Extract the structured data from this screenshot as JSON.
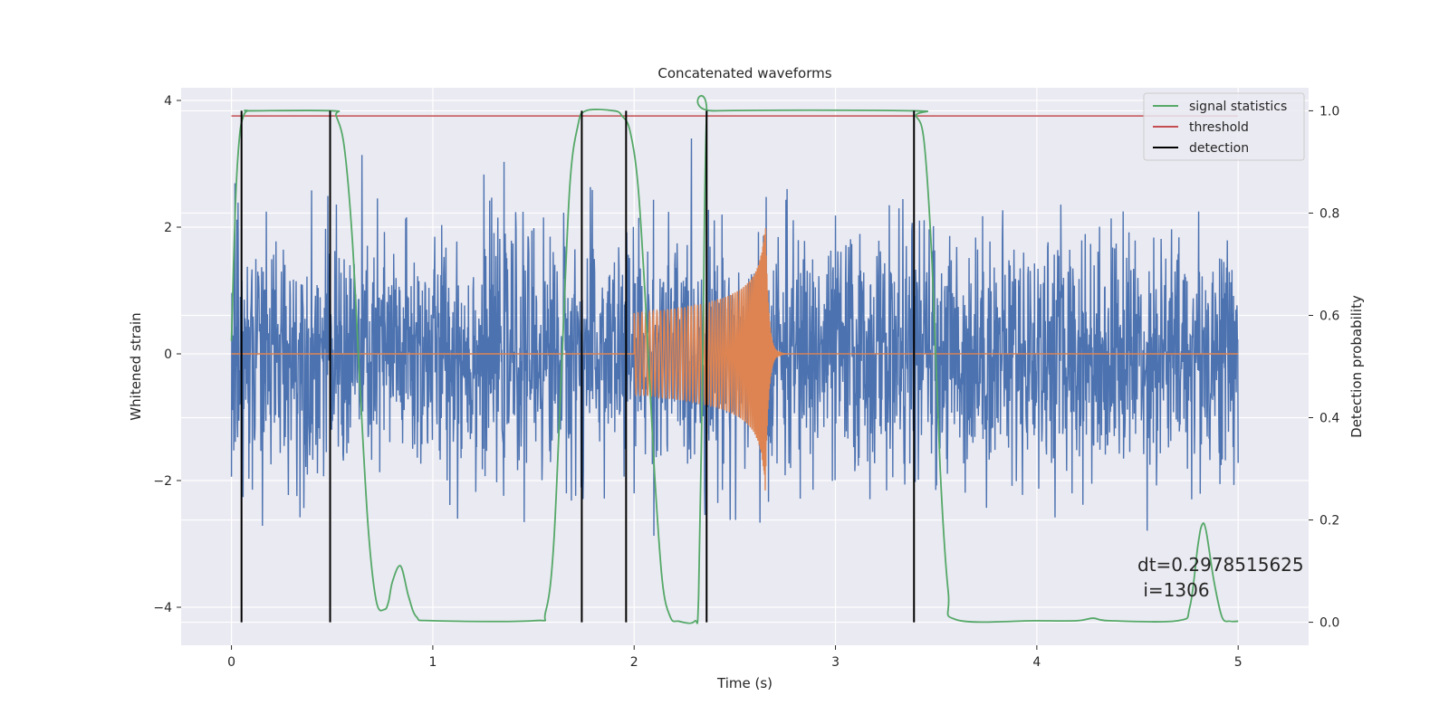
{
  "chart_data": {
    "type": "line",
    "title": "Concatenated waveforms",
    "xlabel": "Time (s)",
    "ylabel": "Whitened strain",
    "y2label": "Detection probability",
    "xlim": [
      -0.25,
      5.35
    ],
    "ylim": [
      -4.6,
      4.2
    ],
    "y2lim": [
      -0.045,
      1.045
    ],
    "xticks": [
      0,
      1,
      2,
      3,
      4,
      5
    ],
    "yticks": [
      -4,
      -2,
      0,
      2,
      4
    ],
    "y2ticks": [
      0.0,
      0.2,
      0.4,
      0.6,
      0.8,
      1.0
    ],
    "y2tick_labels": [
      "0.0",
      "0.2",
      "0.4",
      "0.6",
      "0.8",
      "1.0"
    ],
    "grid": true,
    "legend": {
      "placement": "top-right",
      "entries": [
        {
          "label": "signal statistics",
          "color": "#55a868"
        },
        {
          "label": "threshold",
          "color": "#c44e52"
        },
        {
          "label": "detection",
          "color": "#000000"
        }
      ]
    },
    "noise": {
      "color": "#4c72b0",
      "x_range": [
        0,
        5
      ],
      "approx_range": [
        -3.0,
        3.4
      ]
    },
    "injected_signal": {
      "color": "#dd8452",
      "start": 2.0,
      "merger": 2.65,
      "peak_amplitude": 2.15,
      "min_amplitude": -2.8
    },
    "threshold": {
      "value": 0.99,
      "x_range": [
        0,
        5
      ],
      "color": "#c44e52"
    },
    "signal_statistics": {
      "color": "#55a868",
      "x": [
        0,
        0.02,
        0.04,
        0.06,
        0.08,
        0.1,
        0.5,
        0.52,
        0.56,
        0.6,
        0.64,
        0.68,
        0.72,
        0.76,
        0.78,
        0.8,
        0.84,
        0.88,
        0.92,
        1.0,
        1.5,
        1.56,
        1.6,
        1.64,
        1.68,
        1.72,
        1.76,
        1.9,
        1.94,
        1.98,
        2.02,
        2.06,
        2.1,
        2.14,
        2.18,
        2.22,
        2.3,
        2.32,
        2.34,
        2.36,
        2.4,
        3.38,
        3.4,
        3.44,
        3.48,
        3.52,
        3.56,
        3.6,
        4.0,
        4.2,
        4.28,
        4.36,
        4.7,
        4.76,
        4.8,
        4.82,
        4.84,
        4.88,
        4.92,
        4.96,
        5.0
      ],
      "y": [
        0.55,
        0.82,
        0.95,
        0.99,
        1.0,
        1.0,
        1.0,
        0.99,
        0.93,
        0.75,
        0.45,
        0.18,
        0.04,
        0.025,
        0.04,
        0.08,
        0.11,
        0.05,
        0.01,
        0.003,
        0.003,
        0.02,
        0.15,
        0.5,
        0.85,
        0.97,
        1.0,
        1.0,
        0.99,
        0.96,
        0.85,
        0.6,
        0.3,
        0.08,
        0.01,
        0.002,
        0.002,
        0.05,
        0.5,
        0.99,
        1.0,
        1.0,
        0.99,
        0.94,
        0.7,
        0.3,
        0.06,
        0.005,
        0.003,
        0.003,
        0.008,
        0.003,
        0.003,
        0.03,
        0.15,
        0.19,
        0.18,
        0.08,
        0.01,
        0.002,
        0.002
      ]
    },
    "detections": {
      "color": "#000000",
      "x": [
        0.05,
        0.49,
        1.74,
        1.96,
        2.36,
        3.39
      ]
    },
    "annotation": {
      "line1": "dt=0.2978515625",
      "line2": " i=1306"
    }
  }
}
